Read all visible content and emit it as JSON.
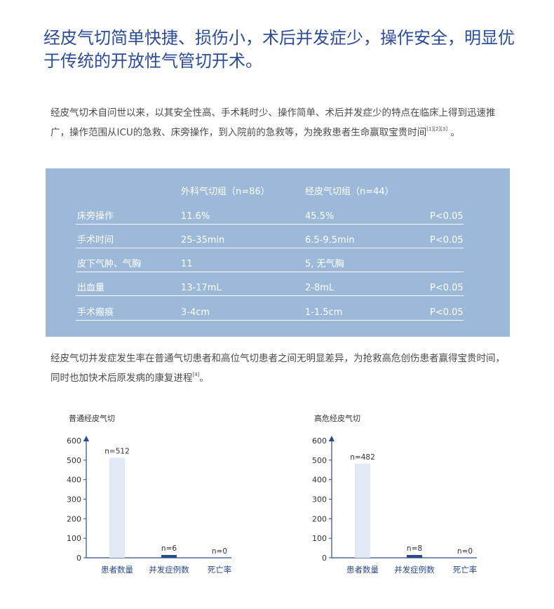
{
  "headline": "经皮气切简单快捷、损伤小，术后并发症少，操作安全，明显优于传统的开放性气管切开术。",
  "intro": {
    "text": "经皮气切术自问世以来，以其安全性高、手术耗时少、操作简单、术后并发症少的特点在临床上得到迅速推广，操作范围从ICU的急救、床旁操作，到入院前的急救等，为挽救患者生命赢取宝贵时间",
    "refs": "[1][2][3]",
    "end": " 。"
  },
  "table": {
    "columns": [
      "外科气切组（n=86）",
      "经皮气切组（n=44）"
    ],
    "rows": [
      {
        "label": "床旁操作",
        "a": "11.6%",
        "b": "45.5%",
        "p": "P<0.05"
      },
      {
        "label": "手术时间",
        "a": "25-35min",
        "b": "6.5-9.5min",
        "p": "P<0.05"
      },
      {
        "label": "皮下气肿、气胸",
        "a": "11",
        "b": "5, 无气胸",
        "p": ""
      },
      {
        "label": "出血量",
        "a": "13-17mL",
        "b": "2-8mL",
        "p": "P<0.05"
      },
      {
        "label": "手术瘢痕",
        "a": "3-4cm",
        "b": "1-1.5cm",
        "p": "P<0.05"
      }
    ]
  },
  "outro": {
    "text": "经皮气切并发症发生率在普通气切患者和高位气切患者之间无明显差异，为抢救高危创伤患者赢得宝贵时间，同时也加快术后原发病的康复进程",
    "refs": "[4]",
    "end": "。"
  },
  "chart_data": [
    {
      "type": "bar",
      "title": "普通经皮气切",
      "categories": [
        "患者数量",
        "并发症例数",
        "死亡率"
      ],
      "values": [
        512,
        6,
        0
      ],
      "labels": [
        "n=512",
        "n=6",
        "n=0"
      ],
      "ylim": [
        0,
        600
      ],
      "yticks": [
        0,
        100,
        200,
        300,
        400,
        500,
        600
      ],
      "colors": [
        "#e2e9f6",
        "#2a4a8c",
        "#2a4a8c"
      ],
      "grid": false
    },
    {
      "type": "bar",
      "title": "高危经皮气切",
      "categories": [
        "患者数量",
        "并发症例数",
        "死亡率"
      ],
      "values": [
        482,
        8,
        0
      ],
      "labels": [
        "n=482",
        "n=8",
        "n=0"
      ],
      "ylim": [
        0,
        600
      ],
      "yticks": [
        0,
        100,
        200,
        300,
        400,
        500,
        600
      ],
      "colors": [
        "#e2e9f6",
        "#2a4a8c",
        "#2a4a8c"
      ],
      "grid": false
    }
  ],
  "colors": {
    "headline": "#2b4c9b",
    "panel": "#9db9da",
    "axis": "#2a4a8c",
    "bar_light": "#e2e9f6",
    "bar_dark": "#2a4a8c"
  }
}
